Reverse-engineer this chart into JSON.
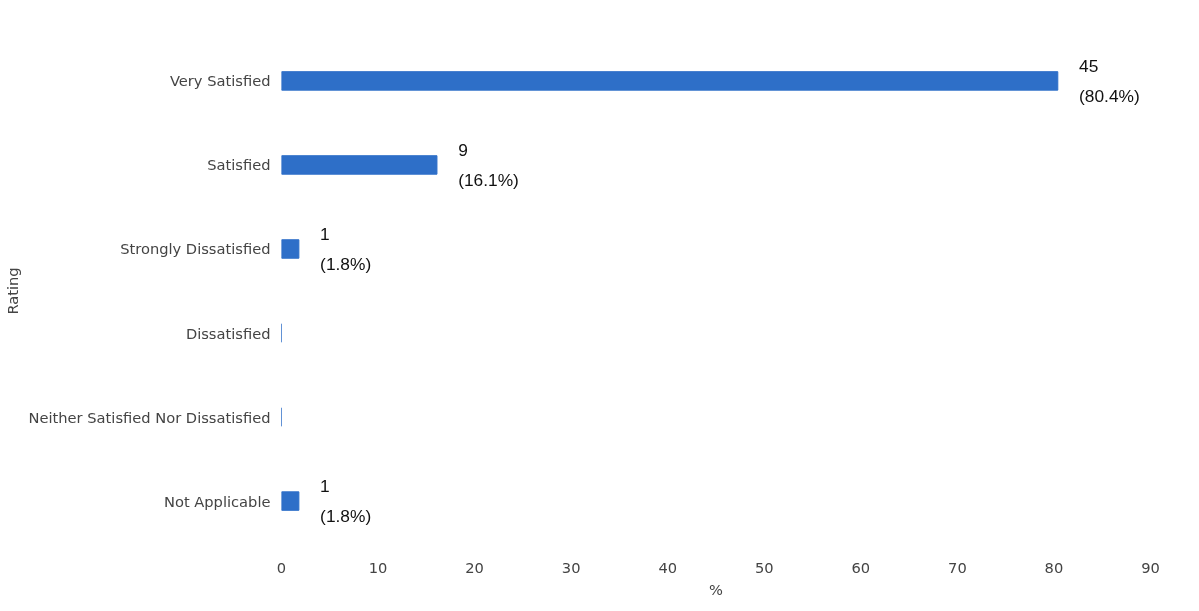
{
  "chart_data": {
    "type": "bar",
    "orientation": "horizontal",
    "xlabel": "%",
    "ylabel": "Rating",
    "categories": [
      "Very Satisfied",
      "Satisfied",
      "Strongly Dissatisfied",
      "Dissatisfied",
      "Neither Satisfied Nor Dissatisfied",
      "Not Applicable"
    ],
    "values": [
      80.4,
      16.1,
      1.8,
      0,
      0,
      1.8
    ],
    "value_labels": [
      "45\n(80.4%)",
      "9\n(16.1%)",
      "1\n(1.8%)",
      null,
      null,
      "1\n(1.8%)"
    ],
    "color": "#2e6fc8",
    "xlim": [
      0,
      90
    ],
    "xticks": [
      0,
      10,
      20,
      30,
      40,
      50,
      60,
      70,
      80,
      90
    ],
    "grid": false
  }
}
